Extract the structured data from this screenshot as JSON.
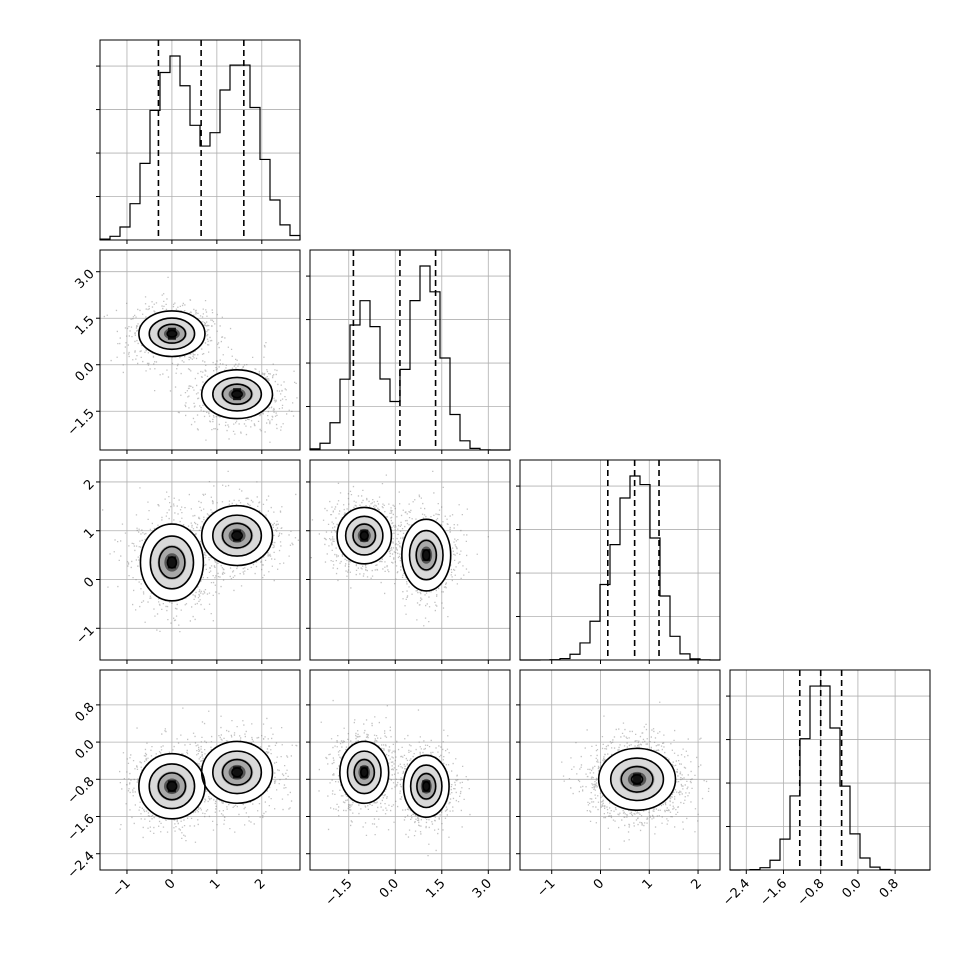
{
  "chart_data": {
    "type": "corner",
    "parameters": [
      {
        "range": [
          -1.6,
          2.85
        ],
        "ticks": [
          -1,
          0,
          1,
          2
        ],
        "tick_labels": [
          "−1",
          "0",
          "1",
          "2"
        ],
        "modes": [
          {
            "mu": 0.0,
            "sd": 0.45,
            "w": 1.0
          },
          {
            "mu": 1.5,
            "sd": 0.45,
            "w": 1.0
          }
        ],
        "quantiles": [
          -0.3,
          0.65,
          1.6
        ]
      },
      {
        "range": [
          -2.75,
          3.7
        ],
        "ticks": [
          -1.5,
          0.0,
          1.5,
          3.0
        ],
        "tick_labels": [
          "−1.5",
          "0.0",
          "1.5",
          "3.0"
        ],
        "modes": [
          {
            "mu": -1.0,
            "sd": 0.5,
            "w": 1.0
          },
          {
            "mu": 1.0,
            "sd": 0.5,
            "w": 1.25
          }
        ],
        "quantiles": [
          -1.35,
          0.15,
          1.3
        ]
      },
      {
        "range": [
          -1.65,
          2.45
        ],
        "ticks": [
          -1,
          0,
          1,
          2
        ],
        "tick_labels": [
          "−1",
          "0",
          "1",
          "2"
        ],
        "modes": [
          {
            "mu": 0.45,
            "sd": 0.4,
            "w": 1.0
          },
          {
            "mu": 0.9,
            "sd": 0.33,
            "w": 1.2
          }
        ],
        "quantiles": [
          0.15,
          0.7,
          1.2
        ]
      },
      {
        "range": [
          -2.75,
          1.55
        ],
        "ticks": [
          -2.4,
          -1.6,
          -0.8,
          0.0,
          0.8
        ],
        "tick_labels": [
          "−2.4",
          "−1.6",
          "−0.8",
          "0.0",
          "0.8"
        ],
        "modes": [
          {
            "mu": -0.8,
            "sd": 0.4,
            "w": 1.0
          }
        ],
        "quantiles": [
          -1.25,
          -0.8,
          -0.35
        ]
      }
    ],
    "joint_peaks": {
      "1_0": [
        [
          0.0,
          1.0,
          0.42,
          0.42
        ],
        [
          1.45,
          -0.95,
          0.45,
          0.45
        ]
      ],
      "2_0": [
        [
          0.0,
          0.35,
          0.4,
          0.45
        ],
        [
          1.45,
          0.9,
          0.45,
          0.35
        ]
      ],
      "2_1": [
        [
          -1.0,
          0.9,
          0.5,
          0.33
        ],
        [
          1.0,
          0.5,
          0.45,
          0.42
        ]
      ],
      "3_0": [
        [
          0.0,
          -0.95,
          0.42,
          0.4
        ],
        [
          1.45,
          -0.65,
          0.45,
          0.38
        ]
      ],
      "3_1": [
        [
          -1.0,
          -0.65,
          0.45,
          0.38
        ],
        [
          1.0,
          -0.95,
          0.42,
          0.38
        ]
      ],
      "3_2": [
        [
          0.75,
          -0.8,
          0.45,
          0.38
        ]
      ]
    },
    "grid": true,
    "legend": "none"
  }
}
